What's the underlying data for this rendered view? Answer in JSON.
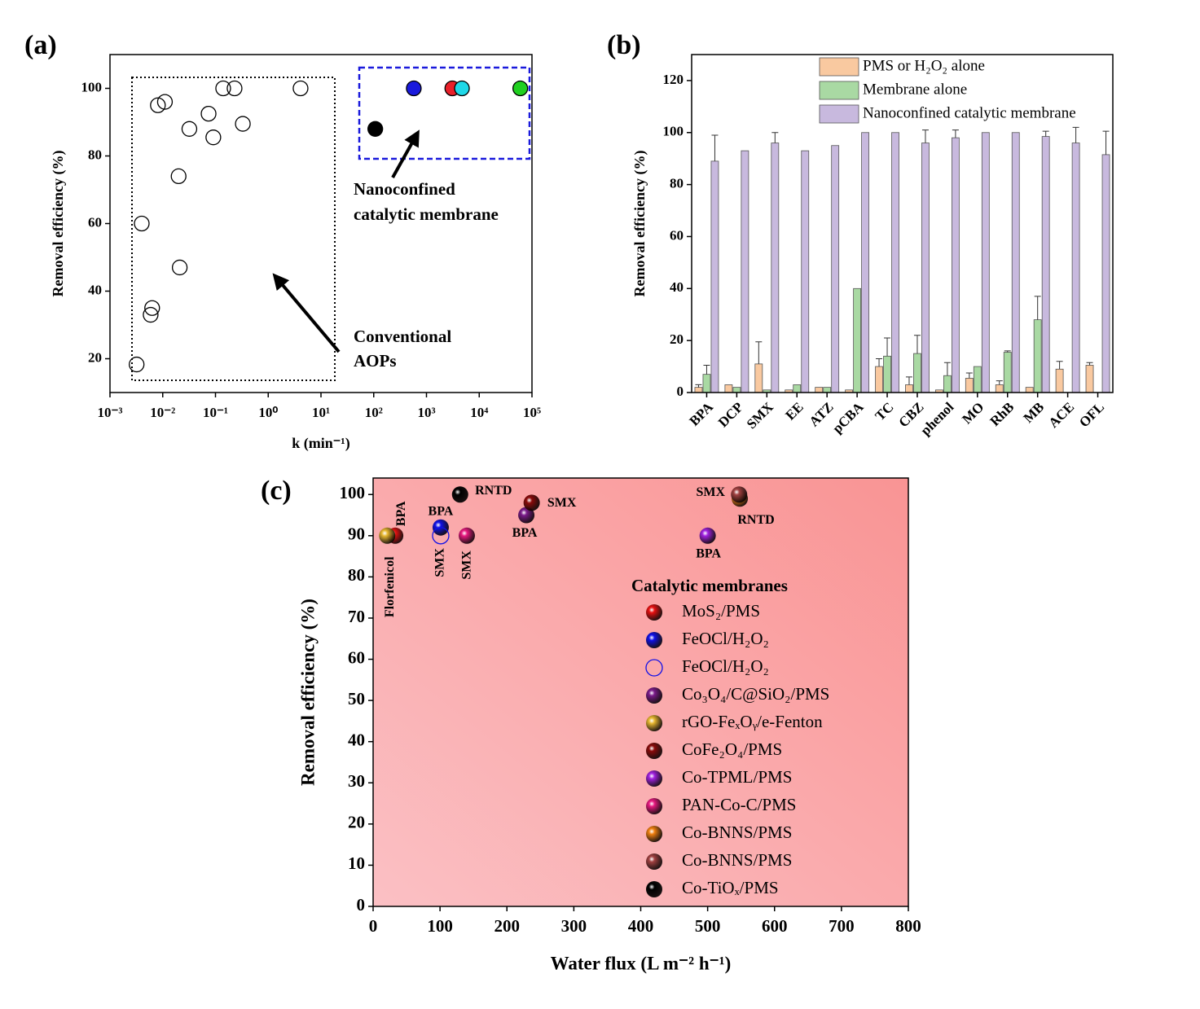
{
  "chart_data": [
    {
      "type": "scatter",
      "panel": "(a)",
      "x_label": "k (min⁻¹)",
      "y_label": "Removal efficiency (%)",
      "xscale": "log",
      "xlim": [
        0.001,
        100000
      ],
      "ylim": [
        10,
        110
      ],
      "xticks": [
        {
          "value": 0.001,
          "label": "10⁻³"
        },
        {
          "value": 0.01,
          "label": "10⁻²"
        },
        {
          "value": 0.1,
          "label": "10⁻¹"
        },
        {
          "value": 1,
          "label": "10⁰"
        },
        {
          "value": 10,
          "label": "10¹"
        },
        {
          "value": 100,
          "label": "10²"
        },
        {
          "value": 1000,
          "label": "10³"
        },
        {
          "value": 10000,
          "label": "10⁴"
        },
        {
          "value": 100000,
          "label": "10⁵"
        }
      ],
      "yticks": [
        20,
        40,
        60,
        80,
        100
      ],
      "series": [
        {
          "color": "#000000",
          "hollow": true,
          "x": [
            0.0032,
            0.004,
            0.0063,
            0.0059,
            0.0081,
            0.011,
            0.02,
            0.021,
            0.032,
            0.074,
            0.091,
            0.14,
            0.23,
            0.33,
            4.1
          ],
          "values": [
            18.3,
            60,
            35,
            33,
            95,
            96,
            74,
            47,
            88,
            92.5,
            85.5,
            100,
            100,
            89.5,
            100
          ]
        },
        {
          "color": "#000000",
          "hollow": false,
          "x": [
            107
          ],
          "values": [
            88
          ]
        },
        {
          "color": "#1a1adc",
          "hollow": false,
          "x": [
            575
          ],
          "values": [
            100
          ]
        },
        {
          "color": "#e8202a",
          "hollow": false,
          "x": [
            3090
          ],
          "values": [
            100
          ]
        },
        {
          "color": "#20d8e8",
          "hollow": false,
          "x": [
            4700
          ],
          "values": [
            100
          ]
        },
        {
          "color": "#20d020",
          "hollow": false,
          "x": [
            60000
          ],
          "values": [
            100
          ]
        }
      ],
      "annotations": [
        "Nanoconfined",
        "catalytic membrane",
        "Conventional",
        "AOPs"
      ]
    },
    {
      "type": "bar",
      "panel": "(b)",
      "y_label": "Removal efficiency (%)",
      "categories": [
        "BPA",
        "DCP",
        "SMX",
        "EE",
        "ATZ",
        "pCBA",
        "TC",
        "CBZ",
        "phenol",
        "MO",
        "RhB",
        "MB",
        "ACE",
        "OFL"
      ],
      "ylim": [
        0,
        130
      ],
      "yticks": [
        0,
        20,
        40,
        60,
        80,
        100,
        120
      ],
      "legend": "top-right",
      "series": [
        {
          "name": "PMS or H₂O₂ alone",
          "color": "#f9c9a0",
          "values": [
            2,
            3,
            11,
            1,
            2,
            1,
            10,
            3,
            1,
            5.5,
            3,
            2,
            9,
            10.5
          ],
          "errors": [
            1,
            null,
            8.5,
            null,
            null,
            null,
            3,
            3,
            null,
            2,
            1.5,
            null,
            3,
            1
          ]
        },
        {
          "name": "Membrane alone",
          "color": "#a9d9a3",
          "values": [
            7,
            2,
            1,
            3,
            2,
            40,
            14,
            15,
            6.5,
            10,
            15.5,
            28,
            0,
            0
          ],
          "errors": [
            3.5,
            null,
            null,
            null,
            null,
            null,
            7,
            7,
            5,
            null,
            0.5,
            9,
            null,
            null
          ]
        },
        {
          "name": "Nanoconfined catalytic membrane",
          "color": "#c8b9de",
          "values": [
            89,
            93,
            96,
            93,
            95,
            100,
            100,
            96,
            98,
            100,
            100,
            98.5,
            96,
            91.5
          ],
          "errors": [
            10,
            null,
            4,
            null,
            null,
            null,
            null,
            5,
            3,
            null,
            null,
            2,
            6,
            9
          ]
        }
      ]
    },
    {
      "type": "scatter",
      "panel": "(c)",
      "x_label": "Water flux (L m⁻² h⁻¹)",
      "y_label": "Removal efficiency (%)",
      "xlim": [
        0,
        800
      ],
      "ylim": [
        0,
        104
      ],
      "xticks": [
        0,
        100,
        200,
        300,
        400,
        500,
        600,
        700,
        800
      ],
      "yticks": [
        0,
        10,
        20,
        30,
        40,
        50,
        60,
        70,
        80,
        90,
        100
      ],
      "legend_title": "Catalytic membranes",
      "legend": "right",
      "series": [
        {
          "name": "MoS₂/PMS",
          "color": "#e81010",
          "hollow": false,
          "x": [
            33
          ],
          "values": [
            90
          ],
          "point_labels": [
            "BPA"
          ]
        },
        {
          "name": "FeOCl/H₂O₂",
          "color": "#1010e8",
          "hollow": false,
          "x": [
            101
          ],
          "values": [
            92
          ],
          "point_labels": [
            "BPA"
          ]
        },
        {
          "name": "FeOCl/H₂O₂",
          "color": "#1010e8",
          "hollow": true,
          "x": [
            101
          ],
          "values": [
            90
          ],
          "point_labels": [
            "SMX"
          ]
        },
        {
          "name": "Co₃O₄/C@SiO₂/PMS",
          "color": "#7a1a8a",
          "hollow": false,
          "x": [
            229
          ],
          "values": [
            95
          ],
          "point_labels": [
            "BPA"
          ]
        },
        {
          "name": "rGO-FeₓOᵧ/e-Fenton",
          "color": "#e8b830",
          "hollow": false,
          "x": [
            21
          ],
          "values": [
            90
          ],
          "point_labels": [
            "Florfenicol"
          ]
        },
        {
          "name": "CoFe₂O₄/PMS",
          "color": "#8a0a0a",
          "hollow": false,
          "x": [
            237
          ],
          "values": [
            98
          ],
          "point_labels": [
            "SMX"
          ]
        },
        {
          "name": "Co-TPML/PMS",
          "color": "#a020e0",
          "hollow": false,
          "x": [
            500
          ],
          "values": [
            90
          ],
          "point_labels": [
            "BPA"
          ]
        },
        {
          "name": "PAN-Co-C/PMS",
          "color": "#e81880",
          "hollow": false,
          "x": [
            140
          ],
          "values": [
            90
          ],
          "point_labels": [
            "SMX"
          ]
        },
        {
          "name": "Co-BNNS/PMS",
          "color": "#f08010",
          "hollow": false,
          "x": [
            548
          ],
          "values": [
            99
          ],
          "point_labels": [
            "RNTD"
          ]
        },
        {
          "name": "Co-BNNS/PMS",
          "color": "#a04040",
          "hollow": false,
          "x": [
            547
          ],
          "values": [
            100
          ],
          "point_labels": [
            "SMX"
          ]
        },
        {
          "name": "Co-TiOₓ/PMS",
          "color": "#000000",
          "hollow": false,
          "x": [
            130
          ],
          "values": [
            100
          ],
          "point_labels": [
            "RNTD"
          ]
        }
      ]
    }
  ]
}
